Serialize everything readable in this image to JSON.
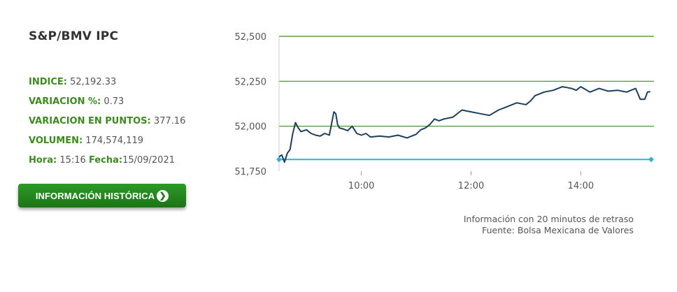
{
  "header": {
    "title": "S&P/BMV IPC"
  },
  "stats": [
    {
      "label": "INDICE:",
      "value": "52,192.33"
    },
    {
      "label": "VARIACION %:",
      "value": "0.73"
    },
    {
      "label": "VARIACION EN PUNTOS:",
      "value": "377.16"
    },
    {
      "label": "VOLUMEN:",
      "value": "174,574,119"
    }
  ],
  "time_row": {
    "hora_label": "Hora:",
    "hora_value": "15:16",
    "fecha_label": "Fecha:",
    "fecha_value": "15/09/2021"
  },
  "button": {
    "label": "INFORMACIÓN HISTÓRICA",
    "icon": "chevron-right-circle-icon"
  },
  "footnote": {
    "line1": "Información con 20 minutos de retraso",
    "line2": "Fuente: Bolsa Mexicana de Valores"
  },
  "colors": {
    "line": "#1e3f5c",
    "reference": "#2eb3d6",
    "grid": "#3d8a1f",
    "label_green": "#3d8a1f",
    "button": "#238a1e"
  },
  "chart_data": {
    "type": "line",
    "title": "",
    "xlabel": "",
    "ylabel": "",
    "ylim": [
      51750,
      52500
    ],
    "xlim": [
      "8:30",
      "15:20"
    ],
    "yticks": [
      52500,
      52250,
      52000,
      51750
    ],
    "ytick_labels": [
      "52,500",
      "52,250",
      "52,000",
      "51,750"
    ],
    "xticks": [
      "10:00",
      "12:00",
      "14:00"
    ],
    "reference_line": {
      "value": 51815
    },
    "series": [
      {
        "x": [
          "8:30",
          "8:33",
          "8:36",
          "8:39",
          "8:42",
          "8:45",
          "8:48",
          "8:51",
          "8:54",
          "9:00",
          "9:05",
          "9:10",
          "9:15",
          "9:20",
          "9:25",
          "9:30",
          "9:32",
          "9:34",
          "9:36",
          "9:40",
          "9:45",
          "9:50",
          "9:55",
          "10:00",
          "10:05",
          "10:10",
          "10:20",
          "10:30",
          "10:40",
          "10:50",
          "11:00",
          "11:05",
          "11:10",
          "11:15",
          "11:20",
          "11:25",
          "11:30",
          "11:40",
          "11:50",
          "12:00",
          "12:10",
          "12:20",
          "12:30",
          "12:40",
          "12:50",
          "13:00",
          "13:05",
          "13:10",
          "13:20",
          "13:30",
          "13:40",
          "13:45",
          "13:50",
          "13:55",
          "14:00",
          "14:10",
          "14:20",
          "14:30",
          "14:40",
          "14:50",
          "15:00",
          "15:05",
          "15:10",
          "15:13",
          "15:16"
        ],
        "y": [
          51830,
          51840,
          51800,
          51850,
          51870,
          51960,
          52020,
          51990,
          51970,
          51980,
          51960,
          51950,
          51945,
          51960,
          51950,
          52080,
          52070,
          52010,
          51990,
          51985,
          51975,
          52000,
          51960,
          51950,
          51960,
          51940,
          51945,
          51940,
          51950,
          51935,
          51955,
          51980,
          51990,
          52010,
          52040,
          52030,
          52040,
          52050,
          52090,
          52080,
          52070,
          52060,
          52090,
          52110,
          52130,
          52120,
          52140,
          52170,
          52190,
          52200,
          52220,
          52215,
          52210,
          52200,
          52220,
          52190,
          52210,
          52195,
          52200,
          52190,
          52210,
          52150,
          52150,
          52190,
          52192
        ]
      }
    ]
  }
}
